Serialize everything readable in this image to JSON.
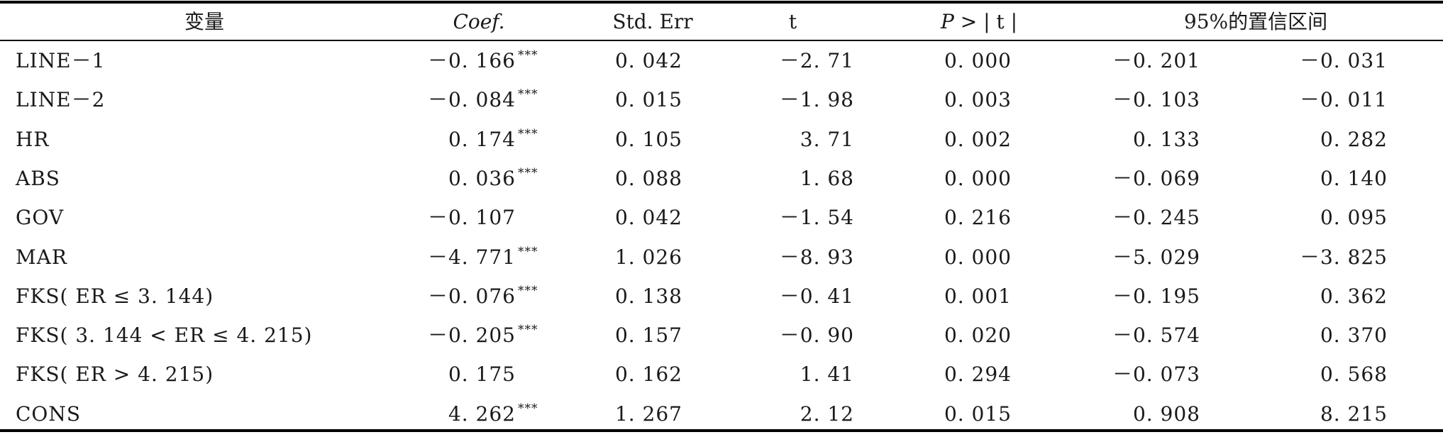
{
  "table": {
    "headers": {
      "variable": "变量",
      "coef": "Coef.",
      "std_err": "Std. Err",
      "t": "t",
      "p_prefix": "P >",
      "p_t": "| t |",
      "ci": "95%的置信区间"
    },
    "rows": [
      {
        "variable": "LINE－1",
        "coef": "－0. 166",
        "stars": "***",
        "std_err": "0. 042",
        "t": "－2. 71",
        "p": "0. 000",
        "ci_low": "－0. 201",
        "ci_high": "－0. 031"
      },
      {
        "variable": "LINE－2",
        "coef": "－0. 084",
        "stars": "***",
        "std_err": "0. 015",
        "t": "－1. 98",
        "p": "0. 003",
        "ci_low": "－0. 103",
        "ci_high": "－0. 011"
      },
      {
        "variable": "HR",
        "coef": "0. 174",
        "stars": "***",
        "std_err": "0. 105",
        "t": "3. 71",
        "p": "0. 002",
        "ci_low": "0. 133",
        "ci_high": "0. 282"
      },
      {
        "variable": "ABS",
        "coef": "0. 036",
        "stars": "***",
        "std_err": "0. 088",
        "t": "1. 68",
        "p": "0. 000",
        "ci_low": "－0. 069",
        "ci_high": "0. 140"
      },
      {
        "variable": "GOV",
        "coef": "－0. 107",
        "stars": "",
        "std_err": "0. 042",
        "t": "－1. 54",
        "p": "0. 216",
        "ci_low": "－0. 245",
        "ci_high": "0. 095"
      },
      {
        "variable": "MAR",
        "coef": "－4. 771",
        "stars": "***",
        "std_err": "1. 026",
        "t": "－8. 93",
        "p": "0. 000",
        "ci_low": "－5. 029",
        "ci_high": "－3. 825"
      },
      {
        "variable": "FKS( ER ≤ 3. 144)",
        "coef": "－0. 076",
        "stars": "***",
        "std_err": "0. 138",
        "t": "－0. 41",
        "p": "0. 001",
        "ci_low": "－0. 195",
        "ci_high": "0. 362"
      },
      {
        "variable": "FKS( 3. 144 < ER ≤ 4. 215)",
        "coef": "－0. 205",
        "stars": "***",
        "std_err": "0. 157",
        "t": "－0. 90",
        "p": "0. 020",
        "ci_low": "－0. 574",
        "ci_high": "0. 370"
      },
      {
        "variable": "FKS( ER > 4. 215)",
        "coef": "0. 175",
        "stars": "",
        "std_err": "0. 162",
        "t": "1. 41",
        "p": "0. 294",
        "ci_low": "－0. 073",
        "ci_high": "0. 568"
      },
      {
        "variable": "CONS",
        "coef": "4. 262",
        "stars": "***",
        "std_err": "1. 267",
        "t": "2. 12",
        "p": "0. 015",
        "ci_low": "0. 908",
        "ci_high": "8. 215"
      }
    ]
  }
}
